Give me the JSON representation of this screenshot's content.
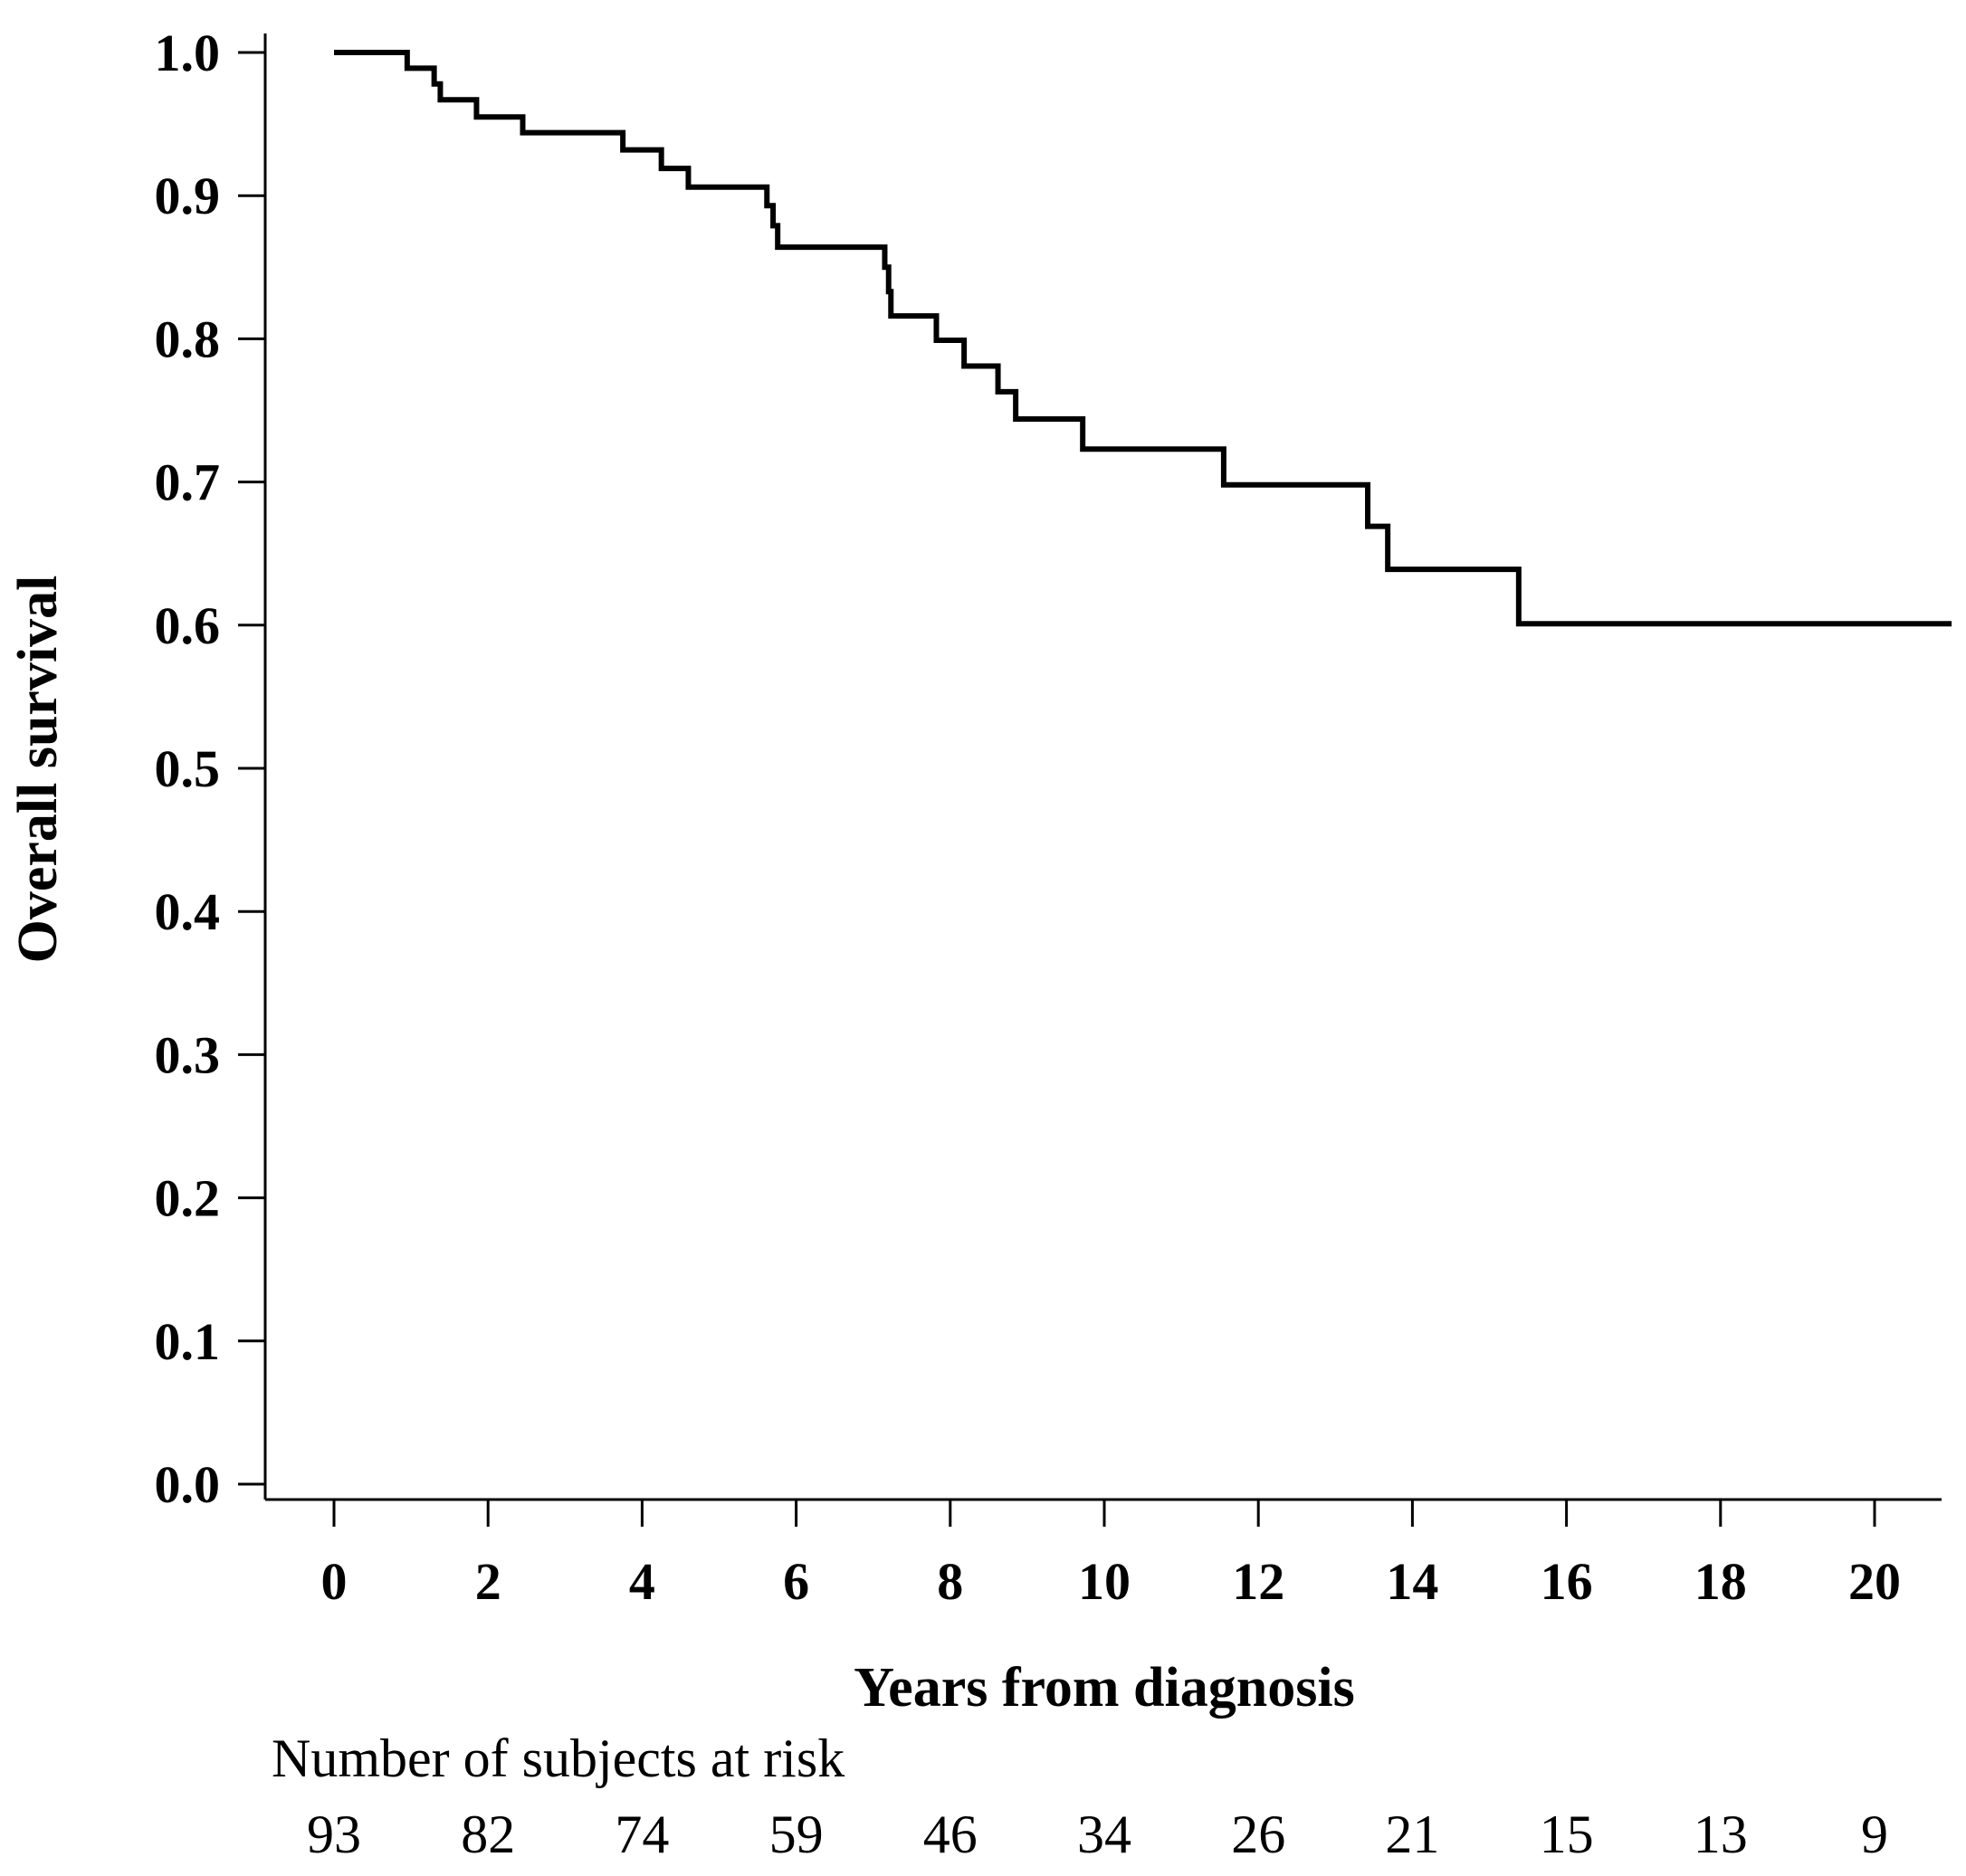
{
  "chart_data": {
    "type": "line",
    "subtype": "kaplan-meier-step",
    "title": "",
    "xlabel": "Years from diagnosis",
    "ylabel": "Overall survival",
    "xlim": [
      -0.9,
      21.0
    ],
    "ylim": [
      0.0,
      1.0
    ],
    "x_ticks": [
      0,
      2,
      4,
      6,
      8,
      10,
      12,
      14,
      16,
      18,
      20
    ],
    "x_tick_labels": [
      "0",
      "2",
      "4",
      "6",
      "8",
      "10",
      "12",
      "14",
      "16",
      "18",
      "20"
    ],
    "y_ticks": [
      0.0,
      0.1,
      0.2,
      0.3,
      0.4,
      0.5,
      0.6,
      0.7,
      0.8,
      0.9,
      1.0
    ],
    "y_tick_labels": [
      "0.0",
      "0.1",
      "0.2",
      "0.3",
      "0.4",
      "0.5",
      "0.6",
      "0.7",
      "0.8",
      "0.9",
      "1.0"
    ],
    "grid": false,
    "legend": "none",
    "series": [
      {
        "name": "Overall survival",
        "color": "#000000",
        "step_points": [
          [
            0.0,
            1.0
          ],
          [
            0.95,
            0.989
          ],
          [
            1.3,
            0.978
          ],
          [
            1.38,
            0.967
          ],
          [
            1.85,
            0.955
          ],
          [
            2.45,
            0.944
          ],
          [
            3.75,
            0.932
          ],
          [
            4.25,
            0.919
          ],
          [
            4.6,
            0.906
          ],
          [
            5.62,
            0.893
          ],
          [
            5.7,
            0.879
          ],
          [
            5.76,
            0.864
          ],
          [
            7.15,
            0.85
          ],
          [
            7.2,
            0.833
          ],
          [
            7.23,
            0.816
          ],
          [
            7.82,
            0.799
          ],
          [
            8.18,
            0.781
          ],
          [
            8.62,
            0.763
          ],
          [
            8.85,
            0.744
          ],
          [
            9.72,
            0.723
          ],
          [
            11.55,
            0.698
          ],
          [
            13.42,
            0.669
          ],
          [
            13.68,
            0.639
          ],
          [
            15.38,
            0.601
          ],
          [
            21.0,
            0.601
          ]
        ]
      }
    ],
    "risk_table": {
      "label": "Number of subjects at risk",
      "times": [
        0,
        2,
        4,
        6,
        8,
        10,
        12,
        14,
        16,
        18,
        20
      ],
      "counts": [
        "93",
        "82",
        "74",
        "59",
        "46",
        "34",
        "26",
        "21",
        "15",
        "13",
        "9"
      ]
    }
  }
}
